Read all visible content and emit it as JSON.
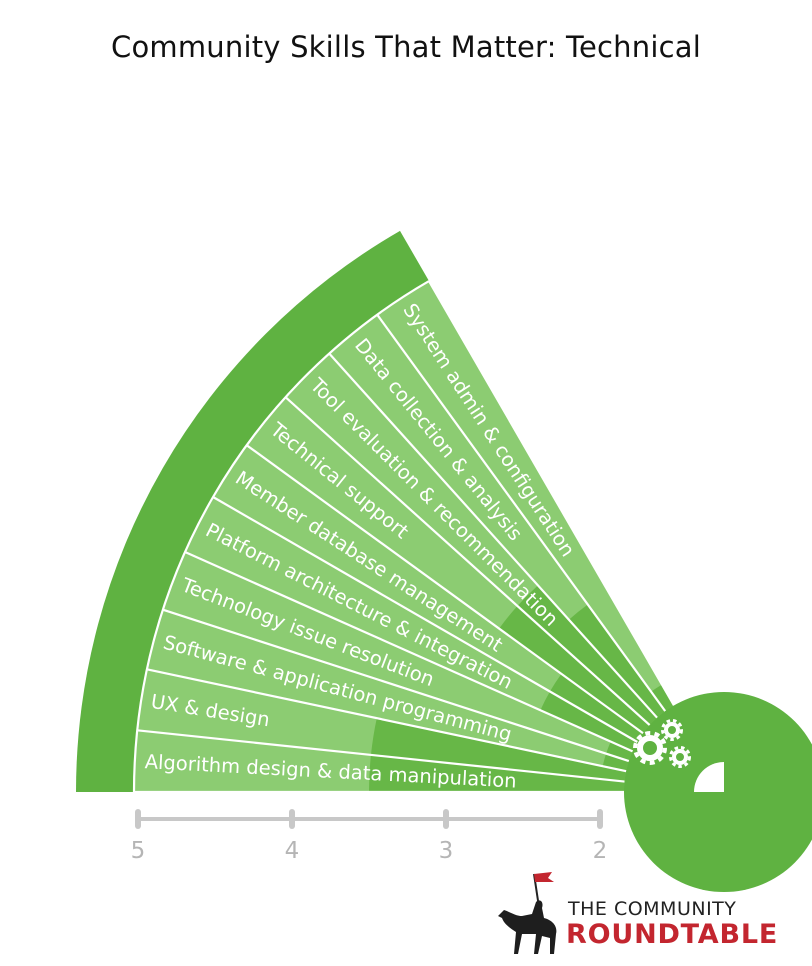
{
  "title": "Community Skills That Matter: Technical",
  "chart_data": {
    "type": "radial-bar",
    "category_group": "Technical Skills",
    "categories": [
      "Algorithm design & data manipulation",
      "UX & design",
      "Software & application programming",
      "Technology issue resolution",
      "Platform architecture & integration",
      "Member database management",
      "Technical support",
      "Tool evaluation & recommendation",
      "Data collection & analysis",
      "System admin & configuration"
    ],
    "values": [
      3.5,
      3.5,
      2.0,
      2.0,
      2.5,
      2.5,
      3.0,
      3.0,
      2.7,
      2.0
    ],
    "axis": {
      "ticks": [
        5,
        4,
        3,
        2
      ],
      "range": [
        5,
        1.6
      ],
      "direction": "reversed"
    },
    "colors": {
      "bar": "#67b747",
      "background": "#8ccc72",
      "frame": "#5fb241",
      "divider": "#ffffff",
      "axis": "#c8c8c8",
      "tick_label": "#b5b5b5"
    }
  },
  "logo": {
    "line1": "THE COMMUNITY",
    "line2": "ROUNDTABLE",
    "flag_color": "#c3262f"
  }
}
